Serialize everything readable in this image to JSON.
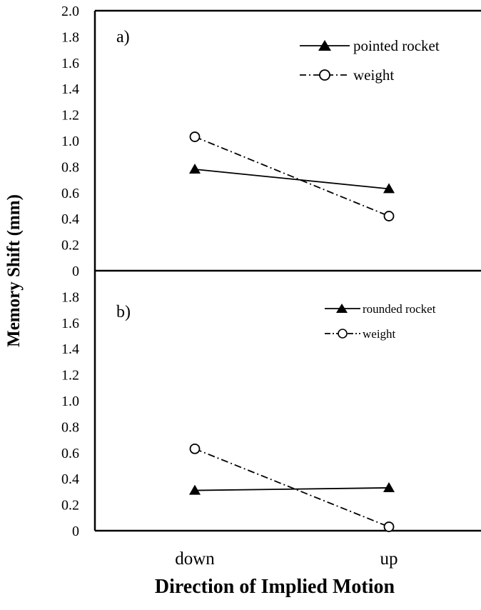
{
  "chart_data": {
    "type": "line",
    "ylabel": "Memory Shift (mm)",
    "xlabel": "Direction of Implied Motion",
    "categories": [
      "down",
      "up"
    ],
    "panels": [
      {
        "label": "a)",
        "ylim": [
          0,
          2.0
        ],
        "yticks": [
          "0",
          "0.2",
          "0.4",
          "0.6",
          "0.8",
          "1.0",
          "1.2",
          "1.4",
          "1.6",
          "1.8",
          "2.0"
        ],
        "series": [
          {
            "name": "pointed rocket",
            "values": [
              0.78,
              0.63
            ],
            "marker": "filled-triangle",
            "line": "solid"
          },
          {
            "name": "weight",
            "values": [
              1.03,
              0.42
            ],
            "marker": "open-circle",
            "line": "dash-dot"
          }
        ]
      },
      {
        "label": "b)",
        "ylim": [
          0,
          2.0
        ],
        "yticks": [
          "0",
          "0.2",
          "0.4",
          "0.6",
          "0.8",
          "1.0",
          "1.2",
          "1.4",
          "1.6",
          "1.8"
        ],
        "series": [
          {
            "name": "rounded rocket",
            "values": [
              0.31,
              0.33
            ],
            "marker": "filled-triangle",
            "line": "solid"
          },
          {
            "name": "weight",
            "values": [
              0.63,
              0.03
            ],
            "marker": "open-circle",
            "line": "dash-dot"
          }
        ]
      }
    ]
  }
}
